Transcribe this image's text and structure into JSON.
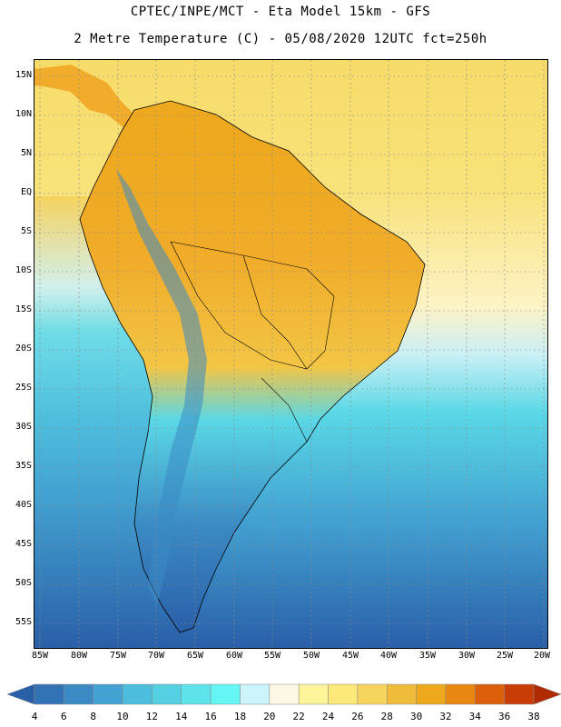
{
  "header": {
    "line1": "CPTEC/INPE/MCT -  Eta Model 15km - GFS",
    "line2": "2 Metre Temperature (C) - 05/08/2020 12UTC fct=250h"
  },
  "map": {
    "lat_labels": [
      "15N",
      "10N",
      "5N",
      "EQ",
      "5S",
      "10S",
      "15S",
      "20S",
      "25S",
      "30S",
      "35S",
      "40S",
      "45S",
      "50S",
      "55S"
    ],
    "lon_labels": [
      "85W",
      "80W",
      "75W",
      "70W",
      "65W",
      "60W",
      "55W",
      "50W",
      "45W",
      "40W",
      "35W",
      "30W",
      "25W",
      "20W"
    ],
    "ocean_color": "#5ad8e6",
    "land_warm": "#f0a92a"
  },
  "colorbar": {
    "levels": [
      "4",
      "6",
      "8",
      "10",
      "12",
      "14",
      "16",
      "18",
      "20",
      "22",
      "24",
      "26",
      "28",
      "30",
      "32",
      "34",
      "36",
      "38"
    ],
    "colors": [
      "#2a5fa8",
      "#3273b5",
      "#3b8ac4",
      "#43a2d2",
      "#4cbddd",
      "#55cfe2",
      "#5ee3ea",
      "#66f5f5",
      "#cbf4fb",
      "#fdf8e6",
      "#fef59a",
      "#fde97a",
      "#f7d45e",
      "#f0bd3a",
      "#eea81c",
      "#e88812",
      "#dc600b",
      "#c83c06",
      "#b02a04"
    ]
  }
}
